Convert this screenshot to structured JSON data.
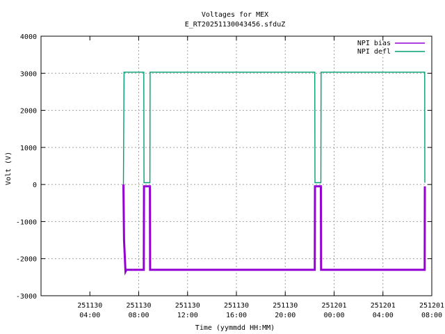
{
  "chart_data": {
    "type": "line",
    "title": "Voltages for MEX",
    "subtitle": "E_RT20251130043456.sfduZ",
    "xlabel": "Time (yymmdd HH:MM)",
    "ylabel": "Volt (V)",
    "xlim": [
      "2025-11-30 00:00",
      "2025-12-01 08:00"
    ],
    "ylim": [
      -3000,
      4000
    ],
    "grid": true,
    "legend_position": "top-right",
    "x_ticks": [
      {
        "date": "251130",
        "time": "04:00",
        "value": "2025-11-30 04:00"
      },
      {
        "date": "251130",
        "time": "08:00",
        "value": "2025-11-30 08:00"
      },
      {
        "date": "251130",
        "time": "12:00",
        "value": "2025-11-30 12:00"
      },
      {
        "date": "251130",
        "time": "16:00",
        "value": "2025-11-30 16:00"
      },
      {
        "date": "251130",
        "time": "20:00",
        "value": "2025-11-30 20:00"
      },
      {
        "date": "251201",
        "time": "00:00",
        "value": "2025-12-01 00:00"
      },
      {
        "date": "251201",
        "time": "04:00",
        "value": "2025-12-01 04:00"
      },
      {
        "date": "251201",
        "time": "08:00",
        "value": "2025-12-01 08:00"
      }
    ],
    "y_ticks": [
      "4000",
      "3000",
      "2000",
      "1000",
      "0",
      "-1000",
      "-2000",
      "-3000"
    ],
    "series": [
      {
        "name": "NPI bias",
        "color": "#9400d3",
        "x": [
          "2025-11-30 06:45",
          "2025-11-30 06:48",
          "2025-11-30 06:55",
          "2025-11-30 07:00",
          "2025-11-30 08:25",
          "2025-11-30 08:26",
          "2025-11-30 08:55",
          "2025-11-30 08:56",
          "2025-11-30 22:25",
          "2025-11-30 22:26",
          "2025-11-30 22:55",
          "2025-11-30 22:56",
          "2025-12-01 07:25",
          "2025-12-01 07:26"
        ],
        "y": [
          0,
          -1500,
          -2350,
          -2300,
          -2300,
          -50,
          -50,
          -2300,
          -2300,
          -50,
          -50,
          -2300,
          -2300,
          -50
        ]
      },
      {
        "name": "NPI defl",
        "color": "#009e73",
        "x": [
          "2025-11-30 06:45",
          "2025-11-30 06:48",
          "2025-11-30 08:25",
          "2025-11-30 08:26",
          "2025-11-30 08:55",
          "2025-11-30 08:56",
          "2025-11-30 22:25",
          "2025-11-30 22:26",
          "2025-11-30 22:55",
          "2025-11-30 22:56",
          "2025-12-01 07:25",
          "2025-12-01 07:26"
        ],
        "y": [
          0,
          3030,
          3030,
          50,
          50,
          3030,
          3030,
          50,
          50,
          3030,
          3030,
          50
        ]
      }
    ]
  }
}
